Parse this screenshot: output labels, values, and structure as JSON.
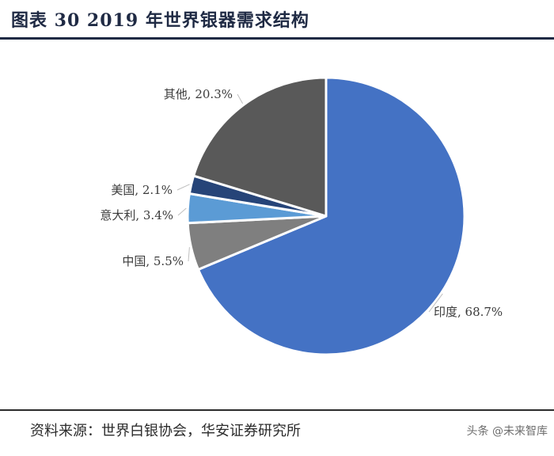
{
  "header": {
    "title": "图表 30 2019 年世界银器需求结构"
  },
  "chart_data": {
    "type": "pie",
    "title": "图表 30 2019 年世界银器需求结构",
    "start_angle_deg": 0,
    "direction": "clockwise",
    "slices": [
      {
        "name": "印度",
        "value": 68.7,
        "label": "印度, 68.7%",
        "color": "#4472c4"
      },
      {
        "name": "中国",
        "value": 5.5,
        "label": "中国, 5.5%",
        "color": "#7f7f7f"
      },
      {
        "name": "意大利",
        "value": 3.4,
        "label": "意大利, 3.4%",
        "color": "#5b9bd5"
      },
      {
        "name": "美国",
        "value": 2.1,
        "label": "美国, 2.1%",
        "color": "#264478"
      },
      {
        "name": "其他",
        "value": 20.3,
        "label": "其他, 20.3%",
        "color": "#595959"
      }
    ]
  },
  "footer": {
    "source": "资料来源：世界白银协会，华安证券研究所",
    "watermark": "头条 @未来智库"
  }
}
